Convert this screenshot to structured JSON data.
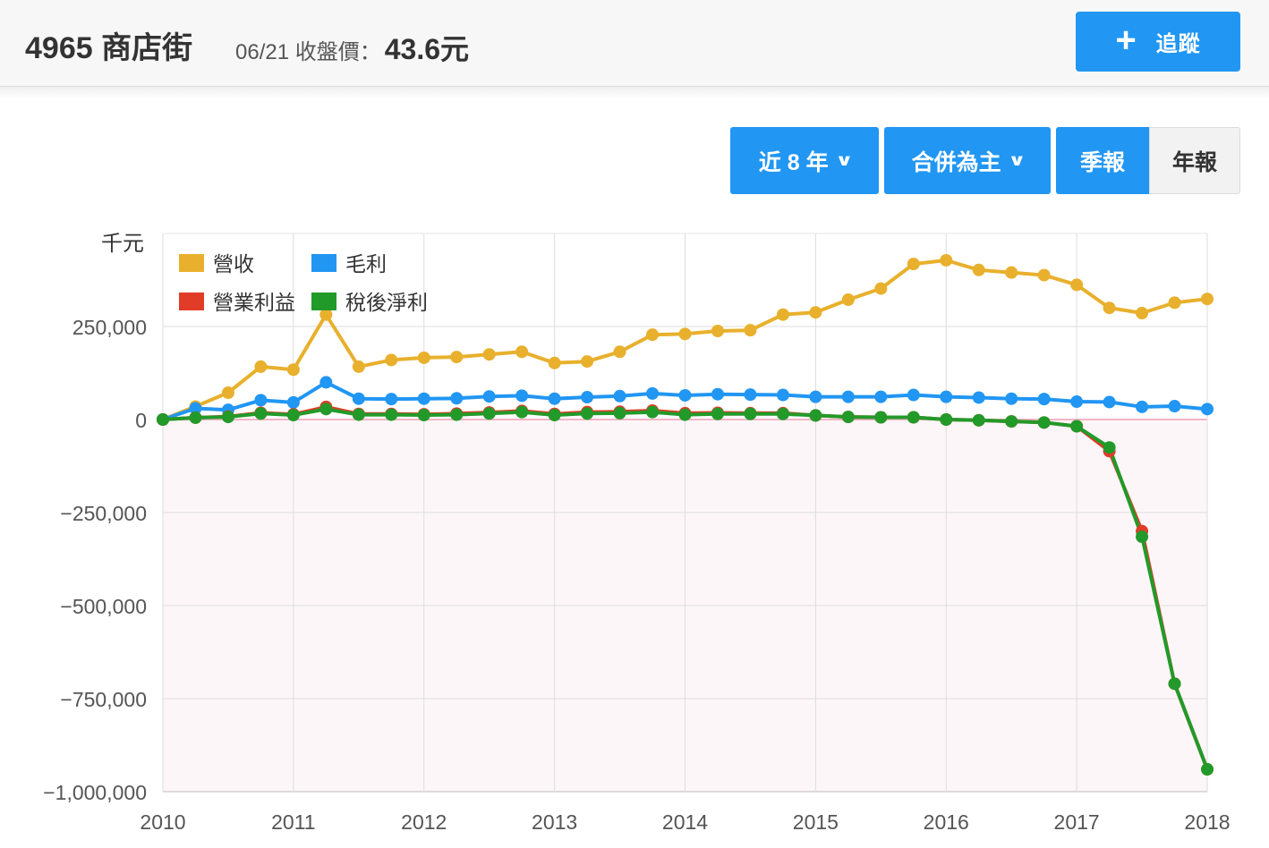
{
  "header": {
    "stock": "4965 商店街",
    "price_label": "06/21 收盤價：",
    "price": "43.6元",
    "track_label": "追蹤"
  },
  "controls": {
    "range": "近 8 年",
    "basis": "合併為主",
    "quarterly": "季報",
    "annual": "年報"
  },
  "colors": {
    "revenue": "#e8b02c",
    "gross": "#2196f3",
    "operating": "#e03c28",
    "net": "#229a2a",
    "accent": "#2196f3"
  },
  "chart_data": {
    "type": "line",
    "unit_label": "千元",
    "x_ticks": [
      "2010",
      "2011",
      "2012",
      "2013",
      "2014",
      "2015",
      "2016",
      "2017",
      "2018"
    ],
    "y_ticks": [
      "250,000",
      "0",
      "−250,000",
      "−500,000",
      "−750,000",
      "−1,000,000"
    ],
    "y_tick_values": [
      250000,
      0,
      -250000,
      -500000,
      -750000,
      -1000000
    ],
    "xlim": [
      2010,
      2018
    ],
    "ylim": [
      -1000000,
      500000
    ],
    "legend_placement": "top-left",
    "grid": true,
    "x": [
      2010.0,
      2010.25,
      2010.5,
      2010.75,
      2011.0,
      2011.25,
      2011.5,
      2011.75,
      2012.0,
      2012.25,
      2012.5,
      2012.75,
      2013.0,
      2013.25,
      2013.5,
      2013.75,
      2014.0,
      2014.25,
      2014.5,
      2014.75,
      2015.0,
      2015.25,
      2015.5,
      2015.75,
      2016.0,
      2016.25,
      2016.5,
      2016.75,
      2017.0,
      2017.25,
      2017.5,
      2017.75,
      2018.0
    ],
    "series": [
      {
        "key": "revenue",
        "name": "營收",
        "values": [
          0,
          35000,
          72000,
          142000,
          134000,
          282000,
          142000,
          160000,
          166000,
          168000,
          175000,
          182000,
          152000,
          156000,
          182000,
          228000,
          230000,
          238000,
          240000,
          282000,
          288000,
          322000,
          352000,
          418000,
          428000,
          402000,
          395000,
          388000,
          362000,
          300000,
          286000,
          314000,
          324000
        ]
      },
      {
        "key": "gross",
        "name": "毛利",
        "values": [
          0,
          30000,
          26000,
          52000,
          46000,
          100000,
          56000,
          55000,
          56000,
          57000,
          62000,
          64000,
          56000,
          60000,
          63000,
          70000,
          65000,
          68000,
          67000,
          66000,
          61000,
          61000,
          61000,
          66000,
          61000,
          59000,
          56000,
          55000,
          48000,
          47000,
          34000,
          36000,
          28000
        ]
      },
      {
        "key": "operating",
        "name": "營業利益",
        "values": [
          0,
          5000,
          8000,
          18000,
          14000,
          34000,
          15000,
          15000,
          14000,
          16000,
          19000,
          23000,
          15000,
          20000,
          21000,
          24000,
          17000,
          18000,
          17000,
          17000,
          11000,
          7000,
          6000,
          6000,
          0,
          -2000,
          -5000,
          -8000,
          -18000,
          -85000,
          -300000,
          -710000,
          -940000
        ]
      },
      {
        "key": "net",
        "name": "稅後淨利",
        "values": [
          0,
          5000,
          7000,
          16000,
          12000,
          28000,
          13000,
          13000,
          12000,
          13000,
          16000,
          20000,
          12000,
          16000,
          17000,
          20000,
          13000,
          15000,
          15000,
          15000,
          11000,
          7000,
          6000,
          6000,
          0,
          -2000,
          -5000,
          -8000,
          -18000,
          -75000,
          -315000,
          -710000,
          -940000
        ]
      }
    ]
  }
}
